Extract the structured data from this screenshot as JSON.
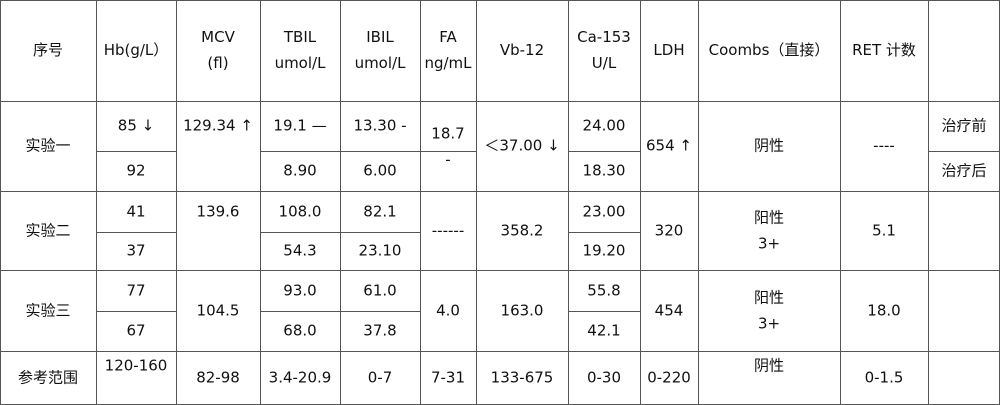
{
  "headers": {
    "seq": "序号",
    "hb": "Hb(g/L）",
    "mcv": [
      "MCV",
      "(fl)"
    ],
    "tbil": [
      "TBIL",
      "umol/L"
    ],
    "ibil": [
      "IBIL",
      "umol/L"
    ],
    "fa": [
      "FA",
      "ng/mL"
    ],
    "vb12": "Vb-12",
    "ca153": [
      "Ca-153",
      "U/L"
    ],
    "ldh": "LDH",
    "coombs": "Coombs（直接）",
    "ret": "RET 计数"
  },
  "exp1": {
    "label": "实验一",
    "hb": [
      "85 ↓",
      "92"
    ],
    "mcv": "129.34 ↑",
    "tbil": [
      "19.1 —",
      "8.90"
    ],
    "ibil": [
      "13.30 -",
      "6.00"
    ],
    "fa": [
      "18.7",
      "-"
    ],
    "vb12": "＜37.00 ↓",
    "ca153": [
      "24.00",
      "18.30"
    ],
    "ldh": "654 ↑",
    "coombs": "阴性",
    "ret": "----",
    "notes": [
      "治疗前",
      "治疗后"
    ]
  },
  "exp2": {
    "label": "实验二",
    "hb": [
      "41",
      "37"
    ],
    "mcv": "139.6",
    "tbil": [
      "108.0",
      "54.3"
    ],
    "ibil": [
      "82.1",
      "23.10"
    ],
    "fa": "------",
    "vb12": "358.2",
    "ca153": [
      "23.00",
      "19.20"
    ],
    "ldh": "320",
    "coombs": [
      "阳性",
      "3+"
    ],
    "ret": "5.1"
  },
  "exp3": {
    "label": "实验三",
    "hb": [
      "77",
      "67"
    ],
    "mcv": "104.5",
    "tbil": [
      "93.0",
      "68.0"
    ],
    "ibil": [
      "61.0",
      "37.8"
    ],
    "fa": "4.0",
    "vb12": "163.0",
    "ca153": [
      "55.8",
      "42.1"
    ],
    "ldh": "454",
    "coombs": [
      "阳性",
      "3+"
    ],
    "ret": "18.0"
  },
  "ref": {
    "label": "参考范围",
    "hb": "120-160",
    "mcv": "82-98",
    "tbil": "3.4-20.9",
    "ibil": "0-7",
    "fa": "7-31",
    "vb12": "133-675",
    "ca153": "0-30",
    "ldh": "0-220",
    "coombs": "阴性",
    "ret": "0-1.5"
  }
}
